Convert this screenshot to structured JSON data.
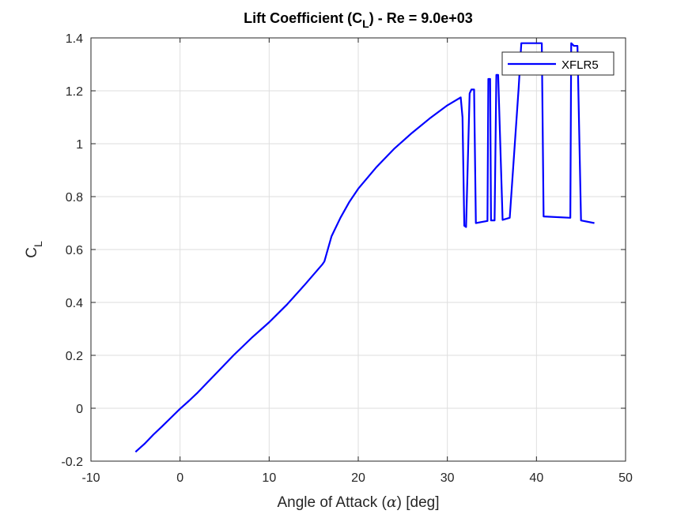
{
  "chart_data": {
    "type": "line",
    "title": "Lift Coefficient (C",
    "title_subscript": "L",
    "title_suffix": ") - Re = 9.0e+03",
    "xlabel_prefix": "Angle of Attack (",
    "xlabel_symbol": "α",
    "xlabel_suffix": ") [deg]",
    "ylabel": "C",
    "ylabel_subscript": "L",
    "xlim": [
      -10,
      50
    ],
    "ylim": [
      -0.2,
      1.4
    ],
    "xticks": [
      -10,
      0,
      10,
      20,
      30,
      40,
      50
    ],
    "xtick_labels": [
      "-10",
      "0",
      "10",
      "20",
      "30",
      "40",
      "50"
    ],
    "yticks": [
      -0.2,
      0,
      0.2,
      0.4,
      0.6,
      0.8,
      1,
      1.2,
      1.4
    ],
    "ytick_labels": [
      "-0.2",
      "0",
      "0.2",
      "0.4",
      "0.6",
      "0.8",
      "1",
      "1.2",
      "1.4"
    ],
    "grid": true,
    "legend_position": "top-right",
    "color": "#0000ff",
    "series": [
      {
        "name": "XFLR5",
        "x": [
          -5,
          -4,
          -3,
          -2,
          -1,
          0,
          1,
          2,
          3,
          4,
          5,
          6,
          8,
          10,
          12,
          14,
          16,
          16.2,
          17,
          18,
          19,
          20,
          22,
          24,
          26,
          28,
          30,
          31.5,
          31.7,
          31.9,
          32.1,
          32.5,
          32.7,
          33.0,
          33.2,
          34.0,
          34.5,
          34.6,
          34.8,
          34.9,
          35.3,
          35.5,
          35.7,
          36.2,
          37.0,
          38.0,
          38.3,
          40.4,
          40.6,
          40.8,
          43.8,
          43.9,
          44.2,
          44.4,
          44.6,
          45.0,
          46.5
        ],
        "y": [
          -0.165,
          -0.135,
          -0.1,
          -0.068,
          -0.035,
          -0.002,
          0.028,
          0.06,
          0.095,
          0.13,
          0.165,
          0.2,
          0.265,
          0.325,
          0.392,
          0.467,
          0.545,
          0.555,
          0.65,
          0.72,
          0.78,
          0.83,
          0.91,
          0.98,
          1.04,
          1.095,
          1.145,
          1.175,
          1.1,
          0.69,
          0.685,
          1.19,
          1.205,
          1.205,
          0.7,
          0.705,
          0.708,
          1.245,
          1.245,
          0.71,
          0.71,
          1.26,
          1.26,
          0.712,
          0.72,
          1.21,
          1.38,
          1.38,
          1.38,
          0.725,
          0.72,
          1.38,
          1.37,
          1.37,
          1.37,
          0.71,
          0.7
        ]
      }
    ]
  }
}
